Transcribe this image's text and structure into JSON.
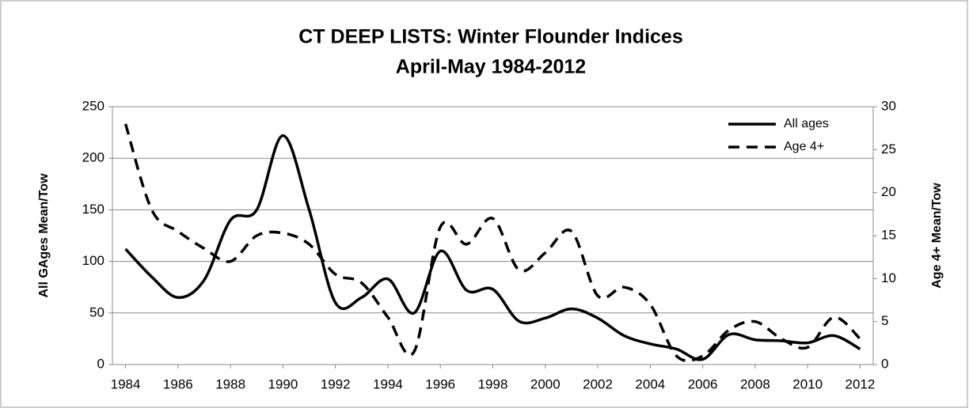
{
  "chart_data": {
    "type": "line",
    "title": "CT DEEP LISTS: Winter Flounder Indices",
    "subtitle": "April-May 1984-2012",
    "y_label": "All GAges Mean/Tow",
    "y2_label": "Age 4+ Mean/Tow",
    "x": [
      1984,
      1985,
      1986,
      1987,
      1988,
      1989,
      1990,
      1991,
      1992,
      1993,
      1994,
      1995,
      1996,
      1997,
      1998,
      1999,
      2000,
      2001,
      2002,
      2003,
      2004,
      2005,
      2006,
      2007,
      2008,
      2009,
      2010,
      2011,
      2012
    ],
    "xlim": [
      1983.5,
      2012.5
    ],
    "xticks": [
      1984,
      1986,
      1988,
      1990,
      1992,
      1994,
      1996,
      1998,
      2000,
      2002,
      2004,
      2006,
      2008,
      2010,
      2012
    ],
    "ylim": [
      0,
      250
    ],
    "yticks": [
      0,
      50,
      100,
      150,
      200,
      250
    ],
    "y2lim": [
      0,
      30
    ],
    "y2ticks": [
      0,
      5,
      10,
      15,
      20,
      25,
      30
    ],
    "grid": true,
    "legend": "top-right",
    "smooth": true,
    "series": [
      {
        "name": "All ages",
        "color": "#000000",
        "line_style": "solid",
        "values": [
          112,
          85,
          65,
          82,
          140,
          150,
          222,
          150,
          60,
          65,
          83,
          50,
          110,
          72,
          73,
          42,
          45,
          54,
          45,
          28,
          20,
          15,
          5,
          29,
          24,
          23,
          21,
          28,
          15
        ]
      },
      {
        "name": "Age 4+",
        "color": "#000000",
        "line_style": "dashed",
        "axis": "y2",
        "values": [
          28,
          18,
          15.5,
          13.5,
          12,
          15,
          15.3,
          14,
          10.5,
          9.5,
          5.5,
          1.5,
          16,
          14,
          17,
          11,
          13,
          15.5,
          8,
          9,
          7,
          1,
          1,
          4,
          5,
          3,
          2,
          5.5,
          3
        ]
      }
    ]
  }
}
